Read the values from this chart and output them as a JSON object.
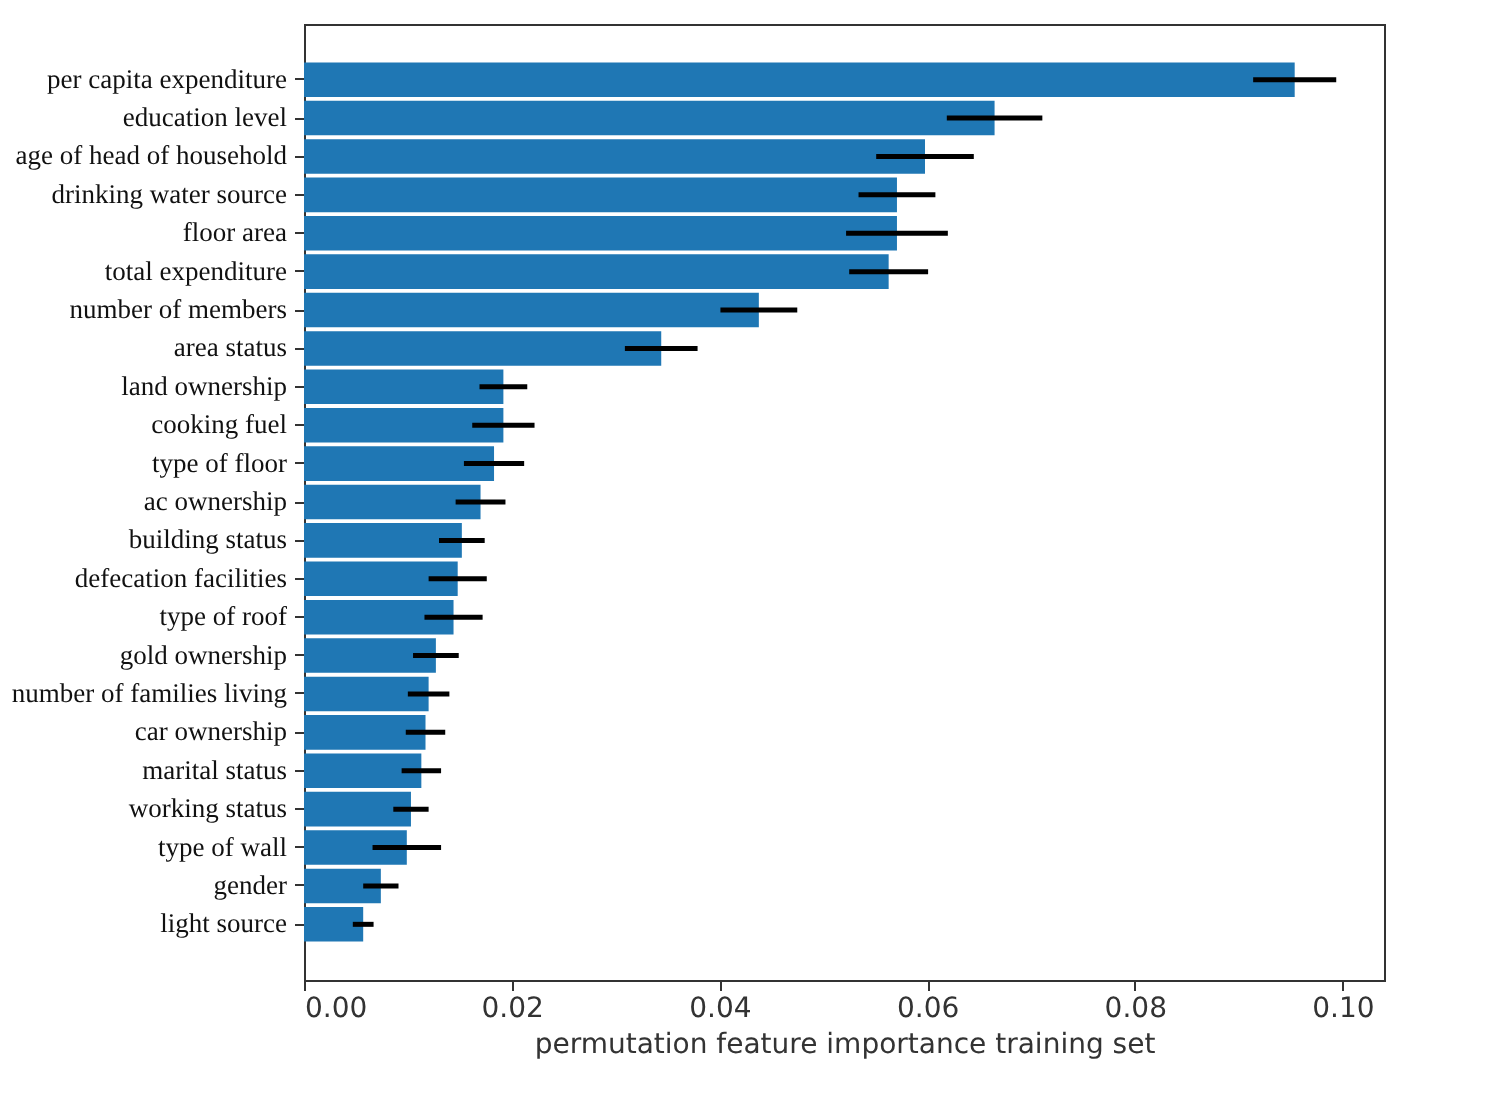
{
  "chart_data": {
    "type": "bar",
    "orientation": "horizontal",
    "xlabel": "permutation feature importance training set",
    "categories": [
      "per capita expenditure",
      "education level",
      "age of head of household",
      "drinking water source",
      "floor area",
      "total expenditure",
      "number of members",
      "area status",
      "land ownership",
      "cooking fuel",
      "type of floor",
      "ac ownership",
      "building status",
      "defecation facilities",
      "type of roof",
      "gold ownership",
      "number of families living",
      "car ownership",
      "marital status",
      "working status",
      "type of wall",
      "gender",
      "light source"
    ],
    "values": [
      0.0954,
      0.0665,
      0.0598,
      0.0571,
      0.0571,
      0.0563,
      0.0438,
      0.0344,
      0.0192,
      0.0192,
      0.0183,
      0.017,
      0.0152,
      0.0148,
      0.0144,
      0.0127,
      0.012,
      0.0117,
      0.0113,
      0.0103,
      0.0099,
      0.0074,
      0.0057
    ],
    "errors": [
      0.004,
      0.0046,
      0.0047,
      0.0037,
      0.0049,
      0.0038,
      0.0037,
      0.0035,
      0.0023,
      0.003,
      0.0029,
      0.0024,
      0.0022,
      0.0028,
      0.0028,
      0.0022,
      0.002,
      0.0019,
      0.0019,
      0.0017,
      0.0033,
      0.0017,
      0.001
    ],
    "color": "#1f77b4",
    "xlim": [
      0,
      0.104
    ],
    "xticks": [
      {
        "value": 0,
        "label": "0.00"
      },
      {
        "value": 0.02,
        "label": "0.02"
      },
      {
        "value": 0.04,
        "label": "0.04"
      },
      {
        "value": 0.06,
        "label": "0.06"
      },
      {
        "value": 0.08,
        "label": "0.08"
      },
      {
        "value": 0.1,
        "label": "0.10"
      }
    ],
    "grid": false
  }
}
